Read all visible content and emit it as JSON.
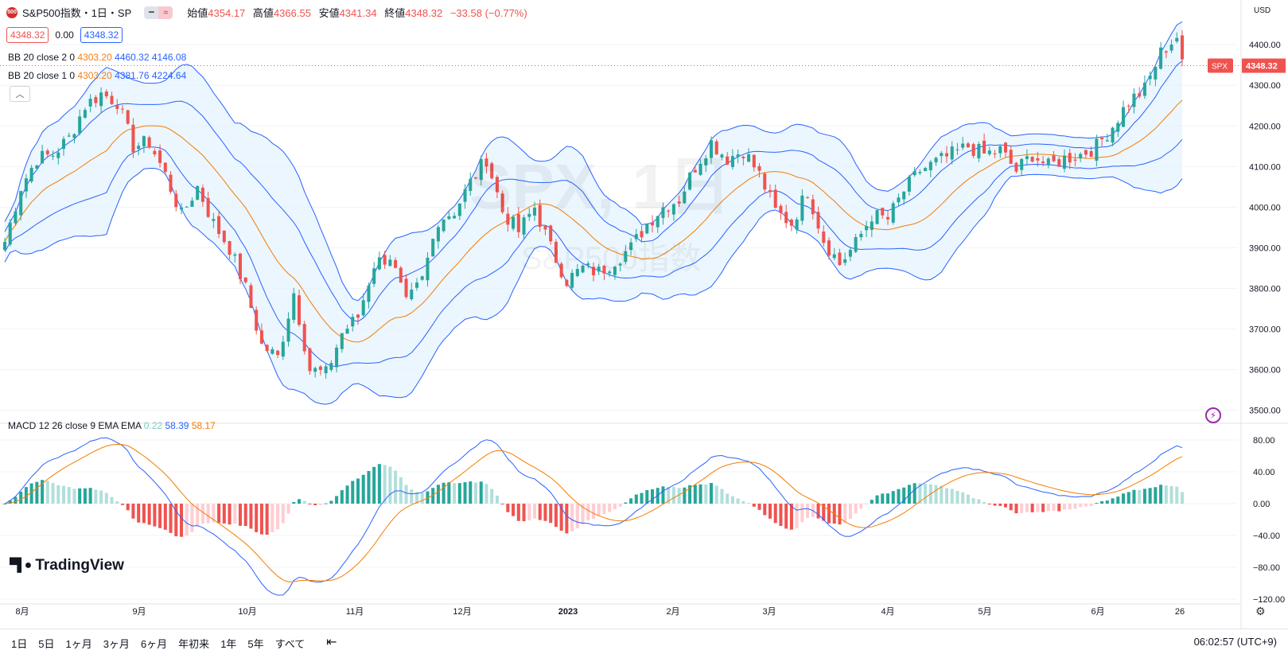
{
  "header": {
    "badge": "500",
    "title": "S&P500指数・1日・SP",
    "ohlc": {
      "open_label": "始値",
      "open": "4354.17",
      "high_label": "高値",
      "high": "4366.55",
      "low_label": "安値",
      "low": "4341.34",
      "close_label": "終値",
      "close": "4348.32",
      "change": "−33.58 (−0.77%)"
    },
    "toggle_icons": [
      "minus-icon",
      "wave-icon"
    ]
  },
  "price_row": {
    "sell": "4348.32",
    "spread": "0.00",
    "buy": "4348.32"
  },
  "indicators": {
    "bb2": {
      "label": "BB 20 close 2 0",
      "mid": "4303.20",
      "upper": "4460.32",
      "lower": "4146.08"
    },
    "bb1": {
      "label": "BB 20 close 1 0",
      "mid": "4303.20",
      "upper": "4381.76",
      "lower": "4224.64"
    },
    "macd": {
      "label": "MACD 12 26 close 9 EMA EMA",
      "hist": "0.22",
      "macd": "58.39",
      "signal": "58.17"
    }
  },
  "watermark": {
    "symbol": "SPX, 1日",
    "name": "S&P500指数"
  },
  "logo": "TradingView",
  "currency": "USD",
  "last_price_tag": {
    "symbol": "SPX",
    "price": "4348.32"
  },
  "colors": {
    "up": "#26a69a",
    "down": "#ef5350",
    "bb_line": "#2962ff",
    "bb_mid": "#f57c00",
    "bb_fill": "#e3f2fd",
    "macd": "#2962ff",
    "signal": "#f57c00"
  },
  "range_buttons": [
    "1日",
    "5日",
    "1ヶ月",
    "3ヶ月",
    "6ヶ月",
    "年初来",
    "1年",
    "5年",
    "すべて"
  ],
  "clock": "06:02:57 (UTC+9)",
  "chart_data": [
    {
      "type": "candlestick",
      "x_ticks": [
        "8月",
        "9月",
        "10月",
        "11月",
        "12月",
        "2023",
        "2月",
        "3月",
        "4月",
        "5月",
        "6月",
        "26"
      ],
      "y_ticks": [
        "4400.00",
        "4300.00",
        "4200.00",
        "4100.00",
        "4000.00",
        "3900.00",
        "3800.00",
        "3700.00",
        "3600.00",
        "3500.00"
      ],
      "ylim": [
        3470,
        4510
      ],
      "indicator": "Bollinger Bands (20, 1σ & 2σ)",
      "close_anchors": [
        [
          0,
          3915
        ],
        [
          3,
          4050
        ],
        [
          6,
          4120
        ],
        [
          9,
          4130
        ],
        [
          12,
          4170
        ],
        [
          15,
          4250
        ],
        [
          18,
          4280
        ],
        [
          21,
          4260
        ],
        [
          24,
          4150
        ],
        [
          27,
          4160
        ],
        [
          30,
          4080
        ],
        [
          33,
          3980
        ],
        [
          36,
          4050
        ],
        [
          39,
          3960
        ],
        [
          42,
          3900
        ],
        [
          45,
          3800
        ],
        [
          48,
          3660
        ],
        [
          51,
          3630
        ],
        [
          54,
          3790
        ],
        [
          57,
          3600
        ],
        [
          60,
          3590
        ],
        [
          63,
          3690
        ],
        [
          66,
          3730
        ],
        [
          69,
          3860
        ],
        [
          72,
          3880
        ],
        [
          75,
          3760
        ],
        [
          78,
          3820
        ],
        [
          81,
          3970
        ],
        [
          84,
          3990
        ],
        [
          87,
          4060
        ],
        [
          90,
          4120
        ],
        [
          93,
          3990
        ],
        [
          96,
          3940
        ],
        [
          99,
          4000
        ],
        [
          102,
          3900
        ],
        [
          105,
          3820
        ],
        [
          108,
          3850
        ],
        [
          111,
          3840
        ],
        [
          114,
          3870
        ],
        [
          117,
          3900
        ],
        [
          120,
          3960
        ],
        [
          123,
          4000
        ],
        [
          126,
          4020
        ],
        [
          129,
          4100
        ],
        [
          132,
          4160
        ],
        [
          135,
          4120
        ],
        [
          138,
          4140
        ],
        [
          141,
          4080
        ],
        [
          144,
          3990
        ],
        [
          147,
          3960
        ],
        [
          150,
          4040
        ],
        [
          153,
          3920
        ],
        [
          156,
          3860
        ],
        [
          159,
          3910
        ],
        [
          162,
          3980
        ],
        [
          165,
          3970
        ],
        [
          168,
          4040
        ],
        [
          171,
          4090
        ],
        [
          174,
          4110
        ],
        [
          177,
          4130
        ],
        [
          180,
          4150
        ],
        [
          183,
          4130
        ],
        [
          186,
          4140
        ],
        [
          189,
          4090
        ],
        [
          192,
          4130
        ],
        [
          195,
          4100
        ],
        [
          198,
          4120
        ],
        [
          201,
          4130
        ],
        [
          204,
          4150
        ],
        [
          207,
          4200
        ],
        [
          210,
          4260
        ],
        [
          213,
          4290
        ],
        [
          216,
          4380
        ],
        [
          219,
          4420
        ],
        [
          220,
          4348
        ]
      ]
    },
    {
      "type": "line",
      "title": "MACD 12 26 close 9",
      "y_ticks": [
        "80.00",
        "40.00",
        "0.00",
        "−40.00",
        "−80.00",
        "−120.00"
      ],
      "ylim": [
        -120,
        100
      ],
      "series": [
        "Histogram",
        "MACD",
        "Signal"
      ]
    }
  ]
}
